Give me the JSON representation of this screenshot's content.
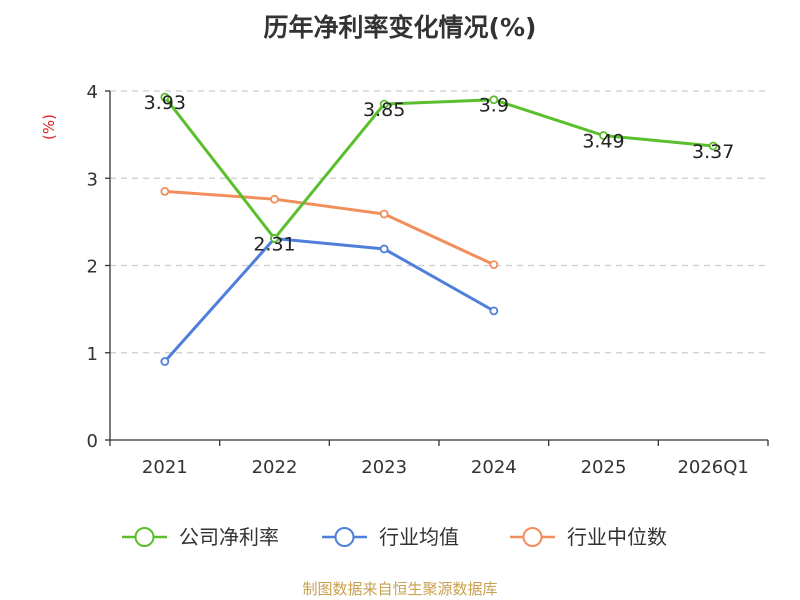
{
  "chart_data": {
    "type": "line",
    "title": "历年净利率变化情况(%)",
    "ylabel": "(%)",
    "xlabel": "",
    "categories": [
      "2021",
      "2022",
      "2023",
      "2024",
      "2025",
      "2026Q1"
    ],
    "ylim": [
      0,
      4
    ],
    "yticks": [
      0,
      1,
      2,
      3,
      4
    ],
    "grid": true,
    "legend_position": "bottom",
    "series": [
      {
        "name": "公司净利率",
        "color": "#5bbf2d",
        "values": [
          3.93,
          2.31,
          3.85,
          3.9,
          3.49,
          3.37
        ],
        "labels": [
          "3.93",
          "2.31",
          "3.85",
          "3.9",
          "3.49",
          "3.37"
        ]
      },
      {
        "name": "行业均值",
        "color": "#4e7fda",
        "values": [
          0.9,
          2.31,
          2.19,
          1.48,
          null,
          null
        ]
      },
      {
        "name": "行业中位数",
        "color": "#f28e5c",
        "values": [
          2.85,
          2.76,
          2.59,
          2.01,
          null,
          null
        ]
      }
    ]
  },
  "source": "制图数据来自恒生聚源数据库"
}
